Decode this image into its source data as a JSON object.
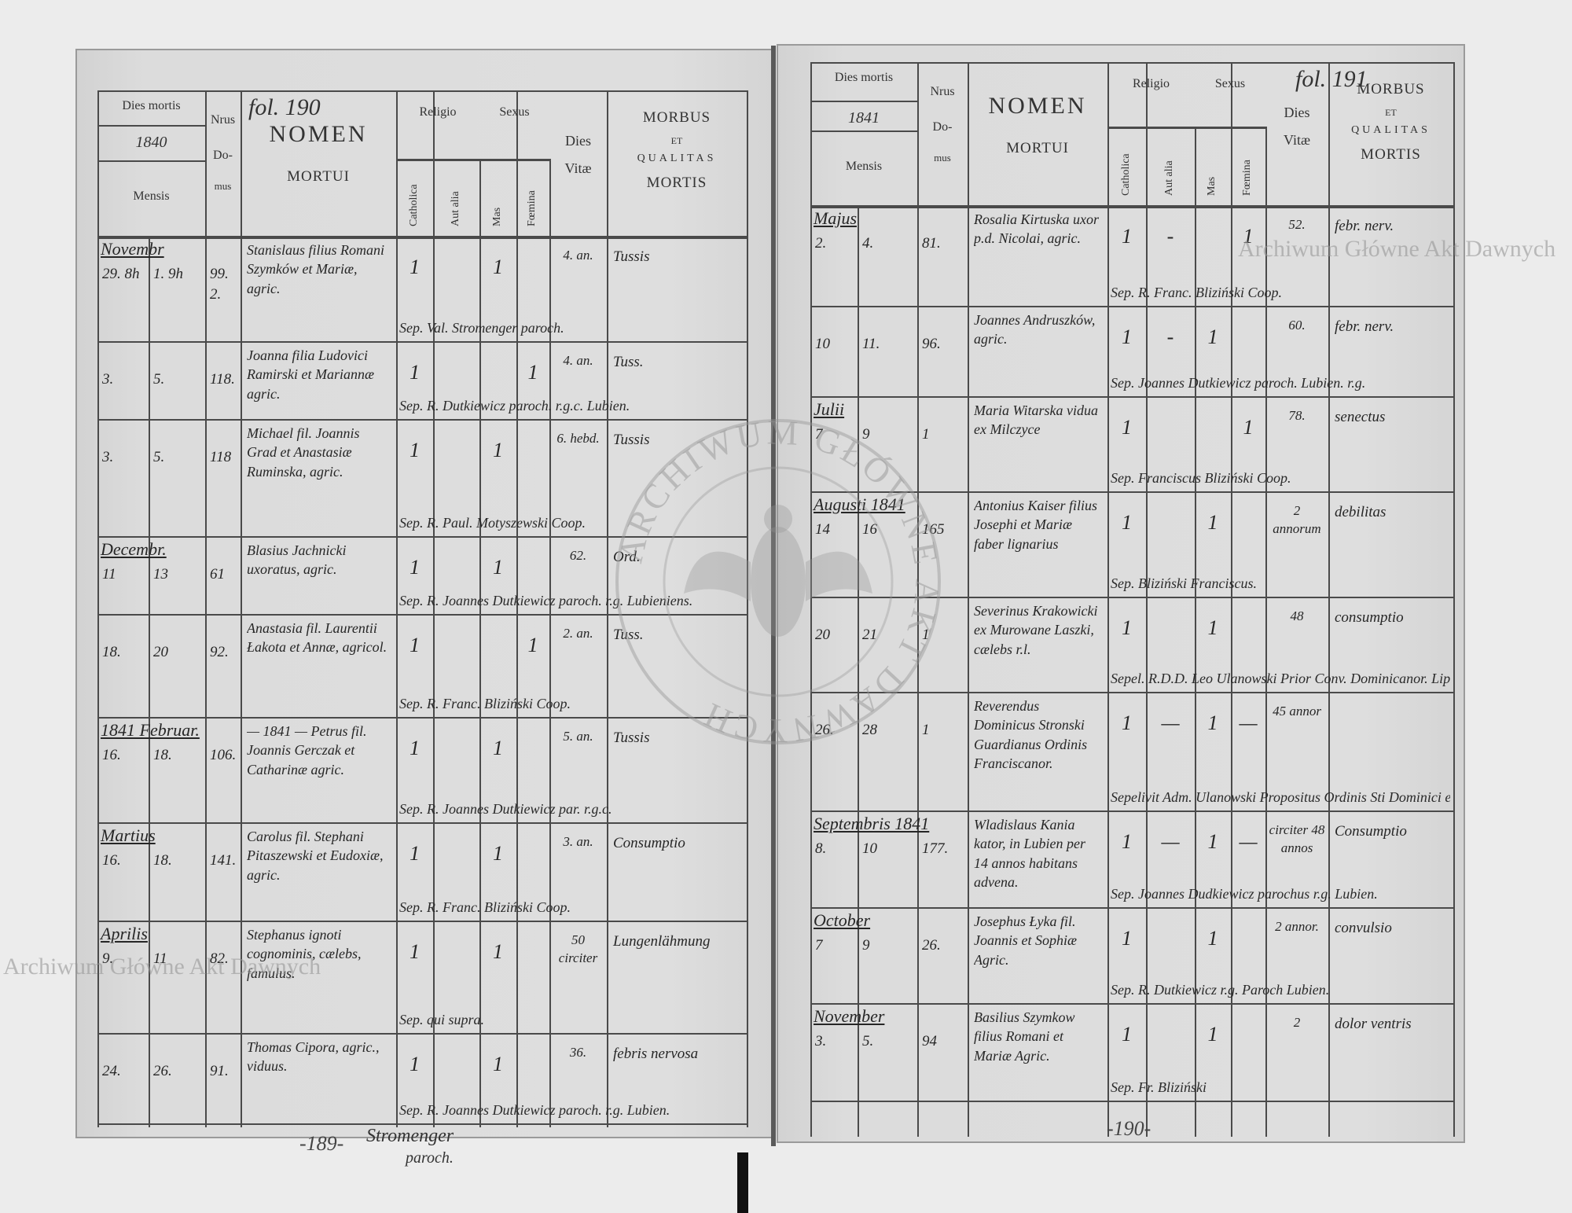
{
  "header": {
    "dies_mortis": "Dies mortis",
    "mensis": "Mensis",
    "nrus": "Nrus",
    "domus_1": "Do-",
    "domus_2": "mus",
    "nomen": "NOMEN",
    "mortui": "MORTUI",
    "religio": "Religio",
    "catholica": "Catholica",
    "aut_alia": "Aut alia",
    "sexus": "Sexus",
    "mas": "Mas",
    "foemina": "Fœmina",
    "dies": "Dies",
    "vitae": "Vitæ",
    "morbus": "MORBUS",
    "et": "ET",
    "qualitas": "QUALITAS",
    "mortis": "MORTIS"
  },
  "left_page": {
    "year": "1840",
    "folio": "fol. 190",
    "page_number": "-189-",
    "signature_1": "Stromenger",
    "signature_2": "paroch.",
    "entries": [
      {
        "month": "Novembr",
        "death": "29. 8h",
        "burial": "1. 9h",
        "house": "99. 2.",
        "name": "Stanislaus filius Romani Szymków et Mariæ, agric.",
        "catholica": "1",
        "aut_alia": "",
        "mas": "1",
        "foemina": "",
        "vitae": "4. an.",
        "morbus": "Tussis",
        "sep": "Sep. Val. Stromenger paroch."
      },
      {
        "month": "",
        "death": "3.",
        "burial": "5.",
        "house": "118.",
        "name": "Joanna filia Ludovici Ramirski et Mariannæ agric.",
        "catholica": "1",
        "aut_alia": "",
        "mas": "",
        "foemina": "1",
        "vitae": "4. an.",
        "morbus": "Tuss.",
        "sep": "Sep. R. Dutkiewicz paroch. r.g.c. Lubien."
      },
      {
        "month": "",
        "death": "3.",
        "burial": "5.",
        "house": "118",
        "name": "Michael fil. Joannis Grad et Anastasiæ Ruminska, agric.",
        "catholica": "1",
        "aut_alia": "",
        "mas": "1",
        "foemina": "",
        "vitae": "6. hebd.",
        "morbus": "Tussis",
        "sep": "Sep. R. Paul. Motyszewski Coop."
      },
      {
        "month": "Decembr.",
        "death": "11",
        "burial": "13",
        "house": "61",
        "name": "Blasius Jachnicki uxoratus, agric.",
        "catholica": "1",
        "aut_alia": "",
        "mas": "1",
        "foemina": "",
        "vitae": "62.",
        "morbus": "Ord.",
        "sep": "Sep. R. Joannes Dutkiewicz paroch. r.g. Lubieniens."
      },
      {
        "month": "",
        "death": "18.",
        "burial": "20",
        "house": "92.",
        "name": "Anastasia fil. Laurentii Łakota et Annæ, agricol.",
        "catholica": "1",
        "aut_alia": "",
        "mas": "",
        "foemina": "1",
        "vitae": "2. an.",
        "morbus": "Tuss.",
        "sep": "Sep. R. Franc. Bliziński Coop."
      },
      {
        "month": "1841 Februar.",
        "death": "16.",
        "burial": "18.",
        "house": "106.",
        "name": "— 1841 — Petrus fil. Joannis Gerczak et Catharinæ agric.",
        "catholica": "1",
        "aut_alia": "",
        "mas": "1",
        "foemina": "",
        "vitae": "5. an.",
        "morbus": "Tussis",
        "sep": "Sep. R. Joannes Dutkiewicz par. r.g.c."
      },
      {
        "month": "Martius",
        "death": "16.",
        "burial": "18.",
        "house": "141.",
        "name": "Carolus fil. Stephani Pitaszewski et Eudoxiæ, agric.",
        "catholica": "1",
        "aut_alia": "",
        "mas": "1",
        "foemina": "",
        "vitae": "3. an.",
        "morbus": "Consumptio",
        "sep": "Sep. R. Franc. Bliziński Coop."
      },
      {
        "month": "Aprilis",
        "death": "9.",
        "burial": "11",
        "house": "82.",
        "name": "Stephanus ignoti cognominis, cælebs, famulus.",
        "catholica": "1",
        "aut_alia": "",
        "mas": "1",
        "foemina": "",
        "vitae": "50 circiter",
        "morbus": "Lungenlähmung",
        "sep": "Sep. qui supra."
      },
      {
        "month": "",
        "death": "24.",
        "burial": "26.",
        "house": "91.",
        "name": "Thomas Cipora, agric., viduus.",
        "catholica": "1",
        "aut_alia": "",
        "mas": "1",
        "foemina": "",
        "vitae": "36.",
        "morbus": "febris nervosa",
        "sep": "Sep. R. Joannes Dutkiewicz paroch. r.g. Lubien."
      }
    ]
  },
  "right_page": {
    "year": "1841",
    "folio": "fol. 191",
    "page_number": "-190-",
    "entries": [
      {
        "month": "Majus",
        "death": "2.",
        "burial": "4.",
        "house": "81.",
        "name": "Rosalia Kirtuska uxor p.d. Nicolai, agric.",
        "catholica": "1",
        "aut_alia": "-",
        "mas": "",
        "foemina": "1",
        "vitae": "52.",
        "morbus": "febr. nerv.",
        "sep": "Sep. R. Franc. Bliziński Coop."
      },
      {
        "month": "",
        "death": "10",
        "burial": "11.",
        "house": "96.",
        "name": "Joannes Andruszków, agric.",
        "catholica": "1",
        "aut_alia": "-",
        "mas": "1",
        "foemina": "",
        "vitae": "60.",
        "morbus": "febr. nerv.",
        "sep": "Sep. Joannes Dutkiewicz paroch. Lubien. r.g."
      },
      {
        "month": "Julii",
        "death": "7",
        "burial": "9",
        "house": "1",
        "name": "Maria Witarska vidua ex Milczyce",
        "catholica": "1",
        "aut_alia": "",
        "mas": "",
        "foemina": "1",
        "vitae": "78.",
        "morbus": "senectus",
        "sep": "Sep. Franciscus Bliziński Coop."
      },
      {
        "month": "Augusti 1841",
        "death": "14",
        "burial": "16",
        "house": "165",
        "name": "Antonius Kaiser filius Josephi et Mariæ faber lignarius",
        "catholica": "1",
        "aut_alia": "",
        "mas": "1",
        "foemina": "",
        "vitae": "2 annorum",
        "morbus": "debilitas",
        "sep": "Sep. Bliziński Franciscus."
      },
      {
        "month": "",
        "death": "20",
        "burial": "21",
        "house": "1",
        "name": "Severinus Krakowicki ex Murowane Laszki, cælebs r.l.",
        "catholica": "1",
        "aut_alia": "",
        "mas": "1",
        "foemina": "",
        "vitae": "48",
        "morbus": "consumptio",
        "sep": "Sepel. R.D.D. Leo Ulanowski Prior Conv. Dominicanor. Lipov."
      },
      {
        "month": "",
        "death": "26.",
        "burial": "28",
        "house": "1",
        "name": "Reverendus Dominicus Stronski Guardianus Ordinis Franciscanor.",
        "catholica": "1",
        "aut_alia": "—",
        "mas": "1",
        "foemina": "—",
        "vitae": "45 annor",
        "morbus": "",
        "sep": "Sepelivit Adm. Ulanowski Propositus Ordinis Sti Dominici ex Collegio Ord. Francisc."
      },
      {
        "month": "Septembris 1841",
        "death": "8.",
        "burial": "10",
        "house": "177.",
        "name": "Wladislaus Kania kator, in Lubien per 14 annos habitans advena.",
        "catholica": "1",
        "aut_alia": "—",
        "mas": "1",
        "foemina": "—",
        "vitae": "circiter 48 annos",
        "morbus": "Consumptio",
        "sep": "Sep. Joannes Dudkiewicz parochus r.g. Lubien."
      },
      {
        "month": "October",
        "death": "7",
        "burial": "9",
        "house": "26.",
        "name": "Josephus Łyka fil. Joannis et Sophiæ Agric.",
        "catholica": "1",
        "aut_alia": "",
        "mas": "1",
        "foemina": "",
        "vitae": "2 annor.",
        "morbus": "convulsio",
        "sep": "Sep. R. Dutkiewicz r.g. Paroch Lubien."
      },
      {
        "month": "November",
        "death": "3.",
        "burial": "5.",
        "house": "94",
        "name": "Basilius Szymkow filius Romani et Mariæ Agric.",
        "catholica": "1",
        "aut_alia": "",
        "mas": "1",
        "foemina": "",
        "vitae": "2",
        "morbus": "dolor ventris",
        "sep": "Sep. Fr. Bliziński"
      }
    ]
  },
  "watermarks": {
    "archive_text_top": "Archiwum Główne Akt Dawnych",
    "archive_text_left": "Archiwum Główne Akt Dawnych",
    "stamp_text": "ARCHIWUM GŁÓWNE AKT DAWNYCH"
  },
  "colors": {
    "paper": "#dcdcdc",
    "ink": "#2b2b2b",
    "watermark": "#b4b4b4"
  }
}
